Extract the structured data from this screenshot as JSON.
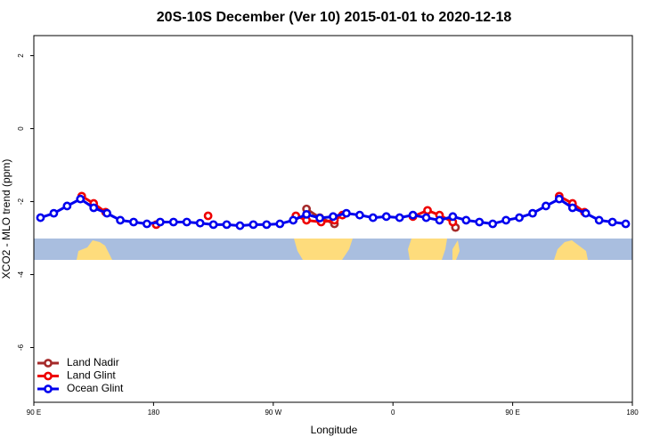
{
  "chart_data": {
    "type": "line",
    "title": "20S-10S December (Ver 10)   2015-01-01 to 2020-12-18",
    "x_label": "Longitude",
    "y_label": "XCO2 - MLO trend (ppm)",
    "xlim": [
      90,
      540
    ],
    "ylim": [
      -7.5,
      2.55
    ],
    "xticks": [
      {
        "value": 90,
        "label": "90 E"
      },
      180,
      {
        "value": 270,
        "label": "90 W"
      },
      {
        "value": 360,
        "label": "0"
      },
      {
        "value": 450,
        "label": "90 E"
      },
      {
        "value": 540,
        "label": "180"
      }
    ],
    "yticks": [
      -6,
      -4,
      -2,
      0,
      2
    ],
    "legend": "bottom-left",
    "series": [
      {
        "name": "Land Nadir",
        "color": "#a52a2a",
        "x": [
          295,
          305,
          316,
          null,
          407
        ],
        "values": [
          -2.2,
          -2.44,
          -2.61,
          null,
          -2.71
        ]
      },
      {
        "name": "Land Glint",
        "color": "#ee0000",
        "x": [
          126,
          135,
          144,
          null,
          182,
          null,
          221,
          null,
          287,
          295,
          306,
          316,
          322,
          null,
          375,
          386,
          395,
          405,
          null,
          485,
          495,
          504
        ],
        "values": [
          -1.85,
          -2.05,
          -2.29,
          null,
          -2.63,
          null,
          -2.39,
          null,
          -2.39,
          -2.51,
          -2.56,
          -2.51,
          -2.37,
          null,
          -2.41,
          -2.24,
          -2.37,
          -2.56,
          null,
          -1.85,
          -2.05,
          -2.29
        ]
      },
      {
        "name": "Ocean Glint",
        "color": "#0000ee",
        "x": [
          95,
          105,
          115,
          125,
          135,
          145,
          155,
          165,
          175,
          185,
          195,
          205,
          215,
          225,
          235,
          245,
          255,
          265,
          275,
          285,
          295,
          305,
          315,
          325,
          335,
          345,
          355,
          365,
          375,
          385,
          395,
          405,
          415,
          425,
          435,
          445,
          455,
          465,
          475,
          485,
          495,
          505,
          515,
          525,
          535
        ],
        "values": [
          -2.44,
          -2.32,
          -2.12,
          -1.93,
          -2.17,
          -2.32,
          -2.51,
          -2.56,
          -2.61,
          -2.56,
          -2.56,
          -2.56,
          -2.59,
          -2.63,
          -2.63,
          -2.66,
          -2.63,
          -2.63,
          -2.61,
          -2.51,
          -2.35,
          -2.45,
          -2.41,
          -2.32,
          -2.37,
          -2.44,
          -2.41,
          -2.44,
          -2.37,
          -2.44,
          -2.51,
          -2.41,
          -2.51,
          -2.56,
          -2.61,
          -2.51,
          -2.44,
          -2.32,
          -2.12,
          -1.93,
          -2.17,
          -2.32,
          -2.51,
          -2.56,
          -2.61
        ]
      }
    ]
  }
}
